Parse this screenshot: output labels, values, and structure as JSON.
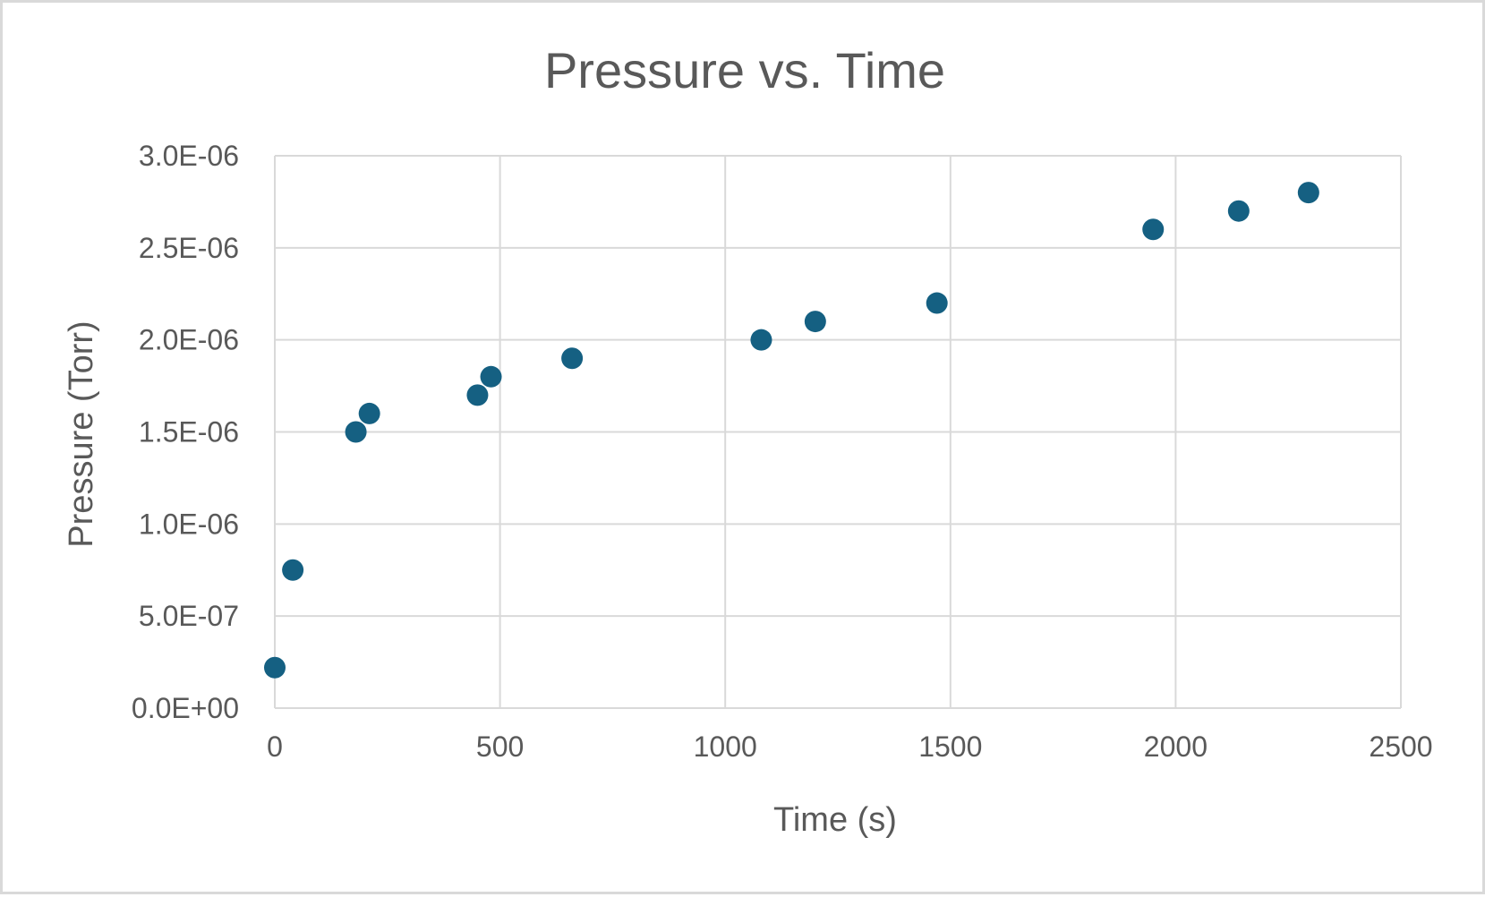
{
  "chart_data": {
    "type": "scatter",
    "title": "Pressure vs. Time",
    "xlabel": "Time (s)",
    "ylabel": "Pressure (Torr)",
    "xlim": [
      0,
      2500
    ],
    "ylim": [
      0,
      3e-06
    ],
    "x_ticks": [
      0,
      500,
      1000,
      1500,
      2000,
      2500
    ],
    "x_tick_labels": [
      "0",
      "500",
      "1000",
      "1500",
      "2000",
      "2500"
    ],
    "y_ticks": [
      0,
      5e-07,
      1e-06,
      1.5e-06,
      2e-06,
      2.5e-06,
      3e-06
    ],
    "y_tick_labels": [
      "0.0E+00",
      "5.0E-07",
      "1.0E-06",
      "1.5E-06",
      "2.0E-06",
      "2.5E-06",
      "3.0E-06"
    ],
    "grid": true,
    "legend": "none",
    "marker_color": "#156082",
    "series": [
      {
        "points": [
          {
            "x": 0,
            "y": 2.2e-07
          },
          {
            "x": 40,
            "y": 7.5e-07
          },
          {
            "x": 180,
            "y": 1.5e-06
          },
          {
            "x": 210,
            "y": 1.6e-06
          },
          {
            "x": 450,
            "y": 1.7e-06
          },
          {
            "x": 480,
            "y": 1.8e-06
          },
          {
            "x": 660,
            "y": 1.9e-06
          },
          {
            "x": 1080,
            "y": 2e-06
          },
          {
            "x": 1200,
            "y": 2.1e-06
          },
          {
            "x": 1470,
            "y": 2.2e-06
          },
          {
            "x": 1950,
            "y": 2.6e-06
          },
          {
            "x": 2140,
            "y": 2.7e-06
          },
          {
            "x": 2295,
            "y": 2.8e-06
          }
        ]
      }
    ]
  }
}
